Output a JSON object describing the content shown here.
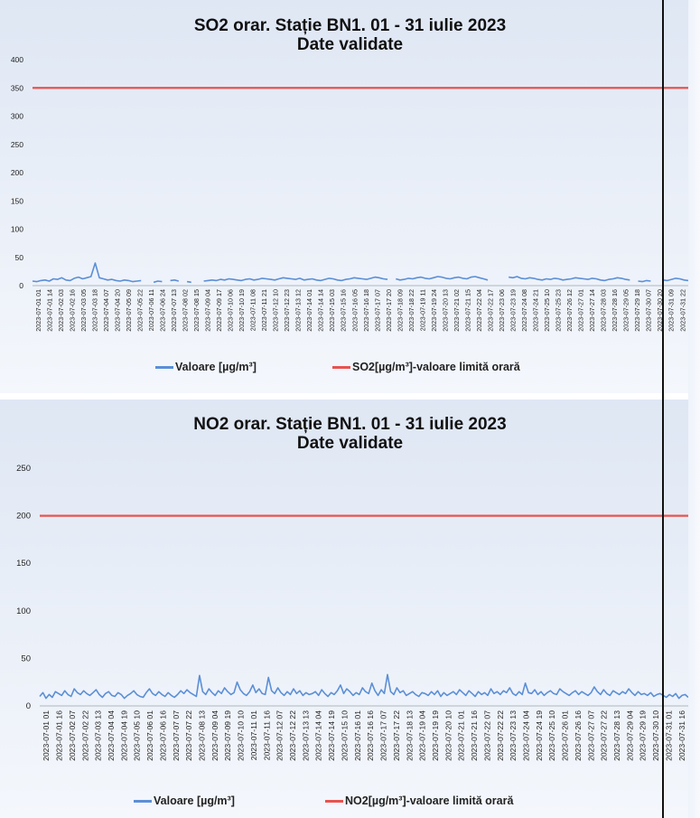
{
  "chart_data": [
    {
      "type": "line",
      "title": "SO2 orar. Stație BN1. 01 - 31 iulie 2023",
      "subtitle": "Date validate",
      "ylim": [
        0,
        400
      ],
      "yticks": [
        0,
        50,
        100,
        150,
        200,
        250,
        300,
        350,
        400
      ],
      "x_ticks": [
        "2023-07-01 01",
        "2023-07-01 14",
        "2023-07-02 03",
        "2023-07-02 16",
        "2023-07-03 05",
        "2023-07-03 18",
        "2023-07-04 07",
        "2023-07-04 20",
        "2023-07-05 09",
        "2023-07-05 22",
        "2023-07-06 11",
        "2023-07-06 24",
        "2023-07-07 13",
        "2023-07-08 02",
        "2023-07-08 15",
        "2023-07-09 04",
        "2023-07-09 17",
        "2023-07-10 06",
        "2023-07-10 19",
        "2023-07-11 08",
        "2023-07-11 21",
        "2023-07-12 10",
        "2023-07-12 23",
        "2023-07-13 12",
        "2023-07-14 01",
        "2023-07-14 14",
        "2023-07-15 03",
        "2023-07-15 16",
        "2023-07-16 05",
        "2023-07-16 18",
        "2023-07-17 07",
        "2023-07-17 20",
        "2023-07-18 09",
        "2023-07-18 22",
        "2023-07-19 11",
        "2023-07-19 24",
        "2023-07-20 13",
        "2023-07-21 02",
        "2023-07-21 15",
        "2023-07-22 04",
        "2023-07-22 17",
        "2023-07-23 06",
        "2023-07-23 19",
        "2023-07-24 08",
        "2023-07-24 21",
        "2023-07-25 10",
        "2023-07-25 23",
        "2023-07-26 12",
        "2023-07-27 01",
        "2023-07-27 14",
        "2023-07-28 03",
        "2023-07-28 16",
        "2023-07-29 05",
        "2023-07-29 18",
        "2023-07-30 07",
        "2023-07-30 20",
        "2023-07-31 09",
        "2023-07-31 22"
      ],
      "series": [
        {
          "name": "Valoare [µg/m³]",
          "color": "#5b8fd6",
          "values": [
            8,
            7,
            9,
            10,
            8,
            12,
            11,
            14,
            10,
            9,
            13,
            15,
            12,
            14,
            16,
            40,
            14,
            12,
            10,
            11,
            9,
            8,
            10,
            9,
            7,
            8,
            9,
            null,
            null,
            6,
            8,
            7,
            null,
            9,
            10,
            8,
            null,
            7,
            6,
            null,
            null,
            8,
            9,
            10,
            9,
            11,
            10,
            12,
            11,
            10,
            9,
            11,
            12,
            10,
            11,
            13,
            12,
            11,
            10,
            12,
            14,
            13,
            12,
            11,
            13,
            10,
            11,
            12,
            10,
            9,
            11,
            13,
            12,
            10,
            9,
            11,
            12,
            14,
            13,
            12,
            11,
            13,
            15,
            14,
            12,
            11,
            null,
            12,
            10,
            11,
            13,
            12,
            14,
            15,
            13,
            12,
            14,
            16,
            15,
            13,
            12,
            14,
            15,
            13,
            12,
            15,
            16,
            14,
            12,
            10,
            null,
            null,
            null,
            null,
            15,
            14,
            16,
            13,
            12,
            14,
            13,
            11,
            10,
            12,
            11,
            13,
            12,
            10,
            11,
            12,
            14,
            13,
            12,
            11,
            13,
            12,
            10,
            9,
            11,
            12,
            14,
            13,
            11,
            10,
            null,
            8,
            7,
            9,
            8,
            null,
            null,
            10,
            9,
            11,
            13,
            12,
            10,
            9
          ]
        },
        {
          "name": "SO2[µg/m³]-valoare limită orară",
          "color": "#e8534f",
          "values": [
            350,
            350
          ]
        }
      ],
      "legend": "bottom"
    },
    {
      "type": "line",
      "title": "NO2 orar. Stație BN1. 01 - 31 iulie 2023",
      "subtitle": "Date validate",
      "ylim": [
        0,
        250
      ],
      "yticks": [
        0,
        50,
        100,
        150,
        200,
        250
      ],
      "x_ticks": [
        "2023-07-01 01",
        "2023-07-01 16",
        "2023-07-02 07",
        "2023-07-02 22",
        "2023-07-03 13",
        "2023-07-04 04",
        "2023-07-04 19",
        "2023-07-05 10",
        "2023-07-06 01",
        "2023-07-06 16",
        "2023-07-07 07",
        "2023-07-07 22",
        "2023-07-08 13",
        "2023-07-09 04",
        "2023-07-09 19",
        "2023-07-10 10",
        "2023-07-11 01",
        "2023-07-11 16",
        "2023-07-12 07",
        "2023-07-12 22",
        "2023-07-13 13",
        "2023-07-14 04",
        "2023-07-14 19",
        "2023-07-15 10",
        "2023-07-16 01",
        "2023-07-16 16",
        "2023-07-17 07",
        "2023-07-17 22",
        "2023-07-18 13",
        "2023-07-19 04",
        "2023-07-19 19",
        "2023-07-20 10",
        "2023-07-21 01",
        "2023-07-21 16",
        "2023-07-22 07",
        "2023-07-22 22",
        "2023-07-23 13",
        "2023-07-24 04",
        "2023-07-24 19",
        "2023-07-25 10",
        "2023-07-26 01",
        "2023-07-26 16",
        "2023-07-27 07",
        "2023-07-27 22",
        "2023-07-28 13",
        "2023-07-29 04",
        "2023-07-29 19",
        "2023-07-30 10",
        "2023-07-31 01",
        "2023-07-31 16"
      ],
      "series": [
        {
          "name": "Valoare [µg/m³]",
          "color": "#5b8fd6",
          "values": [
            10,
            14,
            8,
            12,
            9,
            15,
            13,
            11,
            16,
            12,
            10,
            18,
            14,
            12,
            16,
            13,
            11,
            14,
            17,
            12,
            9,
            13,
            15,
            11,
            10,
            14,
            12,
            8,
            11,
            13,
            16,
            12,
            10,
            9,
            14,
            18,
            13,
            11,
            15,
            12,
            10,
            14,
            11,
            9,
            12,
            16,
            13,
            17,
            14,
            12,
            10,
            32,
            15,
            12,
            18,
            14,
            11,
            16,
            13,
            19,
            15,
            12,
            14,
            25,
            17,
            13,
            11,
            15,
            22,
            14,
            18,
            13,
            12,
            30,
            16,
            13,
            19,
            14,
            11,
            15,
            12,
            18,
            13,
            16,
            11,
            14,
            12,
            13,
            15,
            11,
            17,
            13,
            10,
            14,
            12,
            16,
            22,
            13,
            18,
            15,
            11,
            14,
            12,
            19,
            15,
            13,
            24,
            16,
            11,
            17,
            13,
            33,
            15,
            12,
            19,
            14,
            16,
            11,
            13,
            15,
            12,
            10,
            14,
            13,
            11,
            15,
            12,
            16,
            10,
            14,
            11,
            13,
            15,
            12,
            17,
            14,
            11,
            16,
            13,
            10,
            15,
            12,
            14,
            11,
            18,
            13,
            15,
            12,
            16,
            14,
            19,
            13,
            11,
            15,
            12,
            24,
            14,
            13,
            17,
            12,
            15,
            11,
            14,
            16,
            13,
            12,
            18,
            15,
            13,
            11,
            14,
            16,
            12,
            15,
            13,
            11,
            14,
            20,
            15,
            12,
            17,
            13,
            11,
            16,
            14,
            12,
            15,
            13,
            18,
            14,
            11,
            15,
            12,
            13,
            11,
            14,
            10,
            12,
            13,
            11,
            9,
            12,
            10,
            13,
            8,
            11,
            12,
            9
          ]
        },
        {
          "name": "NO2[µg/m³]-valoare limită orară",
          "color": "#e8534f",
          "values": [
            200,
            200
          ]
        }
      ],
      "legend": "bottom"
    }
  ],
  "colors": {
    "series": "#5b8fd6",
    "limit": "#e8534f",
    "panel": "#e8eef8"
  }
}
